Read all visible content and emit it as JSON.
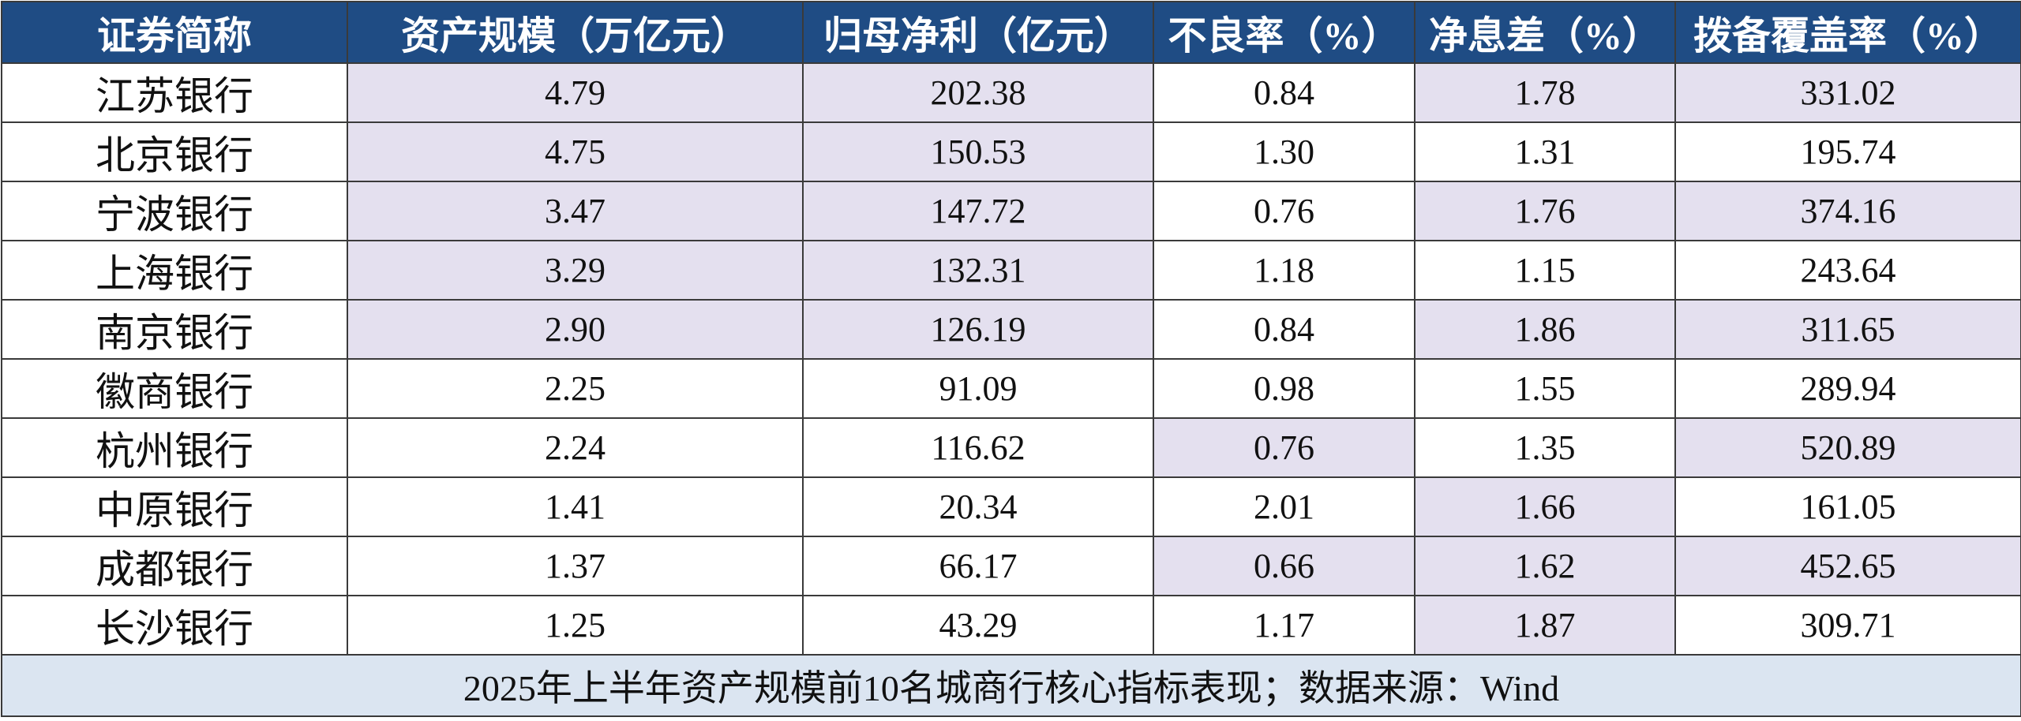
{
  "table": {
    "header": [
      "证券简称",
      "资产规模（万亿元）",
      "归母净利（亿元）",
      "不良率（%）",
      "净息差（%）",
      "拨备覆盖率（%）"
    ],
    "rows": [
      [
        "江苏银行",
        "4.79",
        "202.38",
        "0.84",
        "1.78",
        "331.02"
      ],
      [
        "北京银行",
        "4.75",
        "150.53",
        "1.30",
        "1.31",
        "195.74"
      ],
      [
        "宁波银行",
        "3.47",
        "147.72",
        "0.76",
        "1.76",
        "374.16"
      ],
      [
        "上海银行",
        "3.29",
        "132.31",
        "1.18",
        "1.15",
        "243.64"
      ],
      [
        "南京银行",
        "2.90",
        "126.19",
        "0.84",
        "1.86",
        "311.65"
      ],
      [
        "徽商银行",
        "2.25",
        "91.09",
        "0.98",
        "1.55",
        "289.94"
      ],
      [
        "杭州银行",
        "2.24",
        "116.62",
        "0.76",
        "1.35",
        "520.89"
      ],
      [
        "中原银行",
        "1.41",
        "20.34",
        "2.01",
        "1.66",
        "161.05"
      ],
      [
        "成都银行",
        "1.37",
        "66.17",
        "0.66",
        "1.62",
        "452.65"
      ],
      [
        "长沙银行",
        "1.25",
        "43.29",
        "1.17",
        "1.87",
        "309.71"
      ]
    ],
    "highlight": {
      "color": "#e4e0ef",
      "cells": [
        [
          0,
          1
        ],
        [
          1,
          1
        ],
        [
          2,
          1
        ],
        [
          3,
          1
        ],
        [
          4,
          1
        ],
        [
          0,
          2
        ],
        [
          1,
          2
        ],
        [
          2,
          2
        ],
        [
          3,
          2
        ],
        [
          4,
          2
        ],
        [
          6,
          3
        ],
        [
          8,
          3
        ],
        [
          0,
          4
        ],
        [
          2,
          4
        ],
        [
          4,
          4
        ],
        [
          7,
          4
        ],
        [
          8,
          4
        ],
        [
          9,
          4
        ],
        [
          0,
          5
        ],
        [
          2,
          5
        ],
        [
          4,
          5
        ],
        [
          6,
          5
        ],
        [
          8,
          5
        ]
      ]
    },
    "footer": "2025年上半年资产规模前10名城商行核心指标表现；数据来源：Wind"
  }
}
